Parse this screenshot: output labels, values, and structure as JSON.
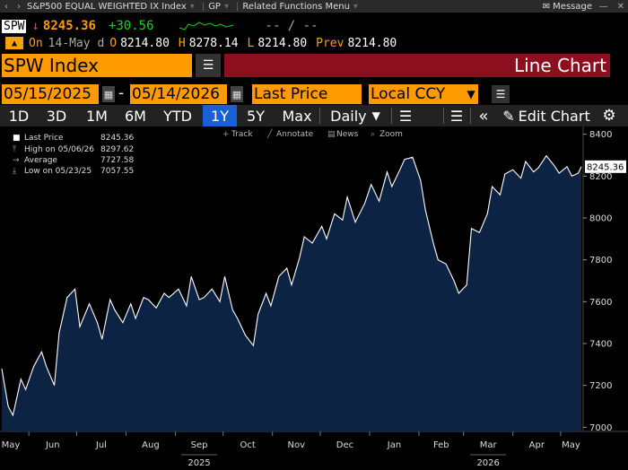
{
  "titlebar": {
    "title": "S&P500 EQUAL WEIGHTED IX Index",
    "fn": "GP",
    "menu": "Related Functions Menu",
    "message": "Message"
  },
  "quote": {
    "ticker": "SPW",
    "price": "8245.36",
    "change": "+30.56",
    "dash": "-- /  --"
  },
  "ohlc": {
    "on_label": "On",
    "date": "14-May d",
    "o_label": "O",
    "open": "8214.80",
    "h_label": "H",
    "high": "8278.14",
    "l_label": "L",
    "low": "8214.80",
    "prev_label": "Prev",
    "prev": "8214.80"
  },
  "security": {
    "name": "SPW Index",
    "chart_type": "Line Chart"
  },
  "dates": {
    "start": "05/15/2025",
    "sep": "-",
    "end": "05/14/2026",
    "field": "Last Price",
    "ccy": "Local CCY"
  },
  "periods": [
    "1D",
    "3D",
    "1M",
    "6M",
    "YTD",
    "1Y",
    "5Y",
    "Max"
  ],
  "active_period": "1Y",
  "frequency": "Daily",
  "edit_chart": "Edit Chart",
  "tools": [
    "Track",
    "Annotate",
    "News",
    "Zoom"
  ],
  "legend": [
    {
      "label": "Last Price",
      "value": "8245.36"
    },
    {
      "label": "High on 05/06/26",
      "value": "8297.62"
    },
    {
      "label": "Average",
      "value": "7727.58"
    },
    {
      "label": "Low on 05/23/25",
      "value": "7057.55"
    }
  ],
  "colors": {
    "accent": "#ff9a00",
    "chart_title_bg": "#8b0f1e",
    "active_tab": "#1b5fd6",
    "up": "#19d419",
    "down": "#ff3a3a",
    "area_fill": "#0d2344",
    "line": "#ffffff"
  },
  "chart_data": {
    "type": "area",
    "title": "",
    "xlabel": "",
    "ylabel": "",
    "ylim": [
      6980,
      8420
    ],
    "yticks": [
      7000,
      7200,
      7400,
      7600,
      7800,
      8000,
      8200,
      8400
    ],
    "last_value_label": "8245.36",
    "x_month_labels": [
      "May",
      "Jun",
      "Jul",
      "Aug",
      "Sep",
      "Oct",
      "Nov",
      "Dec",
      "Jan",
      "Feb",
      "Mar",
      "Apr",
      "May"
    ],
    "x_year_labels": [
      {
        "label": "2025",
        "month": "Sep"
      },
      {
        "label": "2026",
        "month": "Mar"
      }
    ],
    "x": [
      "2025-05-15",
      "2025-05-19",
      "2025-05-22",
      "2025-05-27",
      "2025-05-30",
      "2025-06-04",
      "2025-06-09",
      "2025-06-12",
      "2025-06-17",
      "2025-06-20",
      "2025-06-25",
      "2025-06-30",
      "2025-07-03",
      "2025-07-09",
      "2025-07-14",
      "2025-07-17",
      "2025-07-22",
      "2025-07-25",
      "2025-07-30",
      "2025-08-04",
      "2025-08-07",
      "2025-08-12",
      "2025-08-15",
      "2025-08-20",
      "2025-08-25",
      "2025-08-28",
      "2025-09-03",
      "2025-09-08",
      "2025-09-11",
      "2025-09-16",
      "2025-09-19",
      "2025-09-24",
      "2025-09-29",
      "2025-10-02",
      "2025-10-07",
      "2025-10-10",
      "2025-10-15",
      "2025-10-20",
      "2025-10-23",
      "2025-10-28",
      "2025-10-31",
      "2025-11-05",
      "2025-11-10",
      "2025-11-13",
      "2025-11-18",
      "2025-11-21",
      "2025-11-26",
      "2025-12-02",
      "2025-12-05",
      "2025-12-10",
      "2025-12-15",
      "2025-12-18",
      "2025-12-23",
      "2025-12-29",
      "2026-01-02",
      "2026-01-07",
      "2026-01-12",
      "2026-01-15",
      "2026-01-20",
      "2026-01-23",
      "2026-01-28",
      "2026-02-02",
      "2026-02-05",
      "2026-02-10",
      "2026-02-13",
      "2026-02-18",
      "2026-02-23",
      "2026-02-26",
      "2026-03-03",
      "2026-03-06",
      "2026-03-11",
      "2026-03-16",
      "2026-03-19",
      "2026-03-24",
      "2026-03-27",
      "2026-04-01",
      "2026-04-06",
      "2026-04-09",
      "2026-04-14",
      "2026-04-17",
      "2026-04-22",
      "2026-04-27",
      "2026-04-30",
      "2026-05-05",
      "2026-05-08",
      "2026-05-12",
      "2026-05-14"
    ],
    "series": [
      {
        "values": [
          7280,
          7100,
          7057,
          7230,
          7180,
          7290,
          7360,
          7290,
          7200,
          7450,
          7620,
          7660,
          7480,
          7590,
          7500,
          7420,
          7610,
          7560,
          7500,
          7590,
          7520,
          7620,
          7610,
          7570,
          7640,
          7620,
          7660,
          7580,
          7720,
          7610,
          7620,
          7660,
          7600,
          7720,
          7560,
          7520,
          7440,
          7390,
          7540,
          7640,
          7580,
          7720,
          7760,
          7680,
          7810,
          7910,
          7880,
          7960,
          7900,
          8020,
          7990,
          8100,
          7980,
          8070,
          8160,
          8080,
          8220,
          8150,
          8230,
          8280,
          8290,
          8180,
          8040,
          7880,
          7800,
          7780,
          7700,
          7640,
          7680,
          7950,
          7930,
          8020,
          8150,
          8110,
          8210,
          8230,
          8190,
          8270,
          8220,
          8240,
          8297,
          8250,
          8214,
          8245,
          8200,
          8214,
          8245
        ]
      }
    ]
  }
}
